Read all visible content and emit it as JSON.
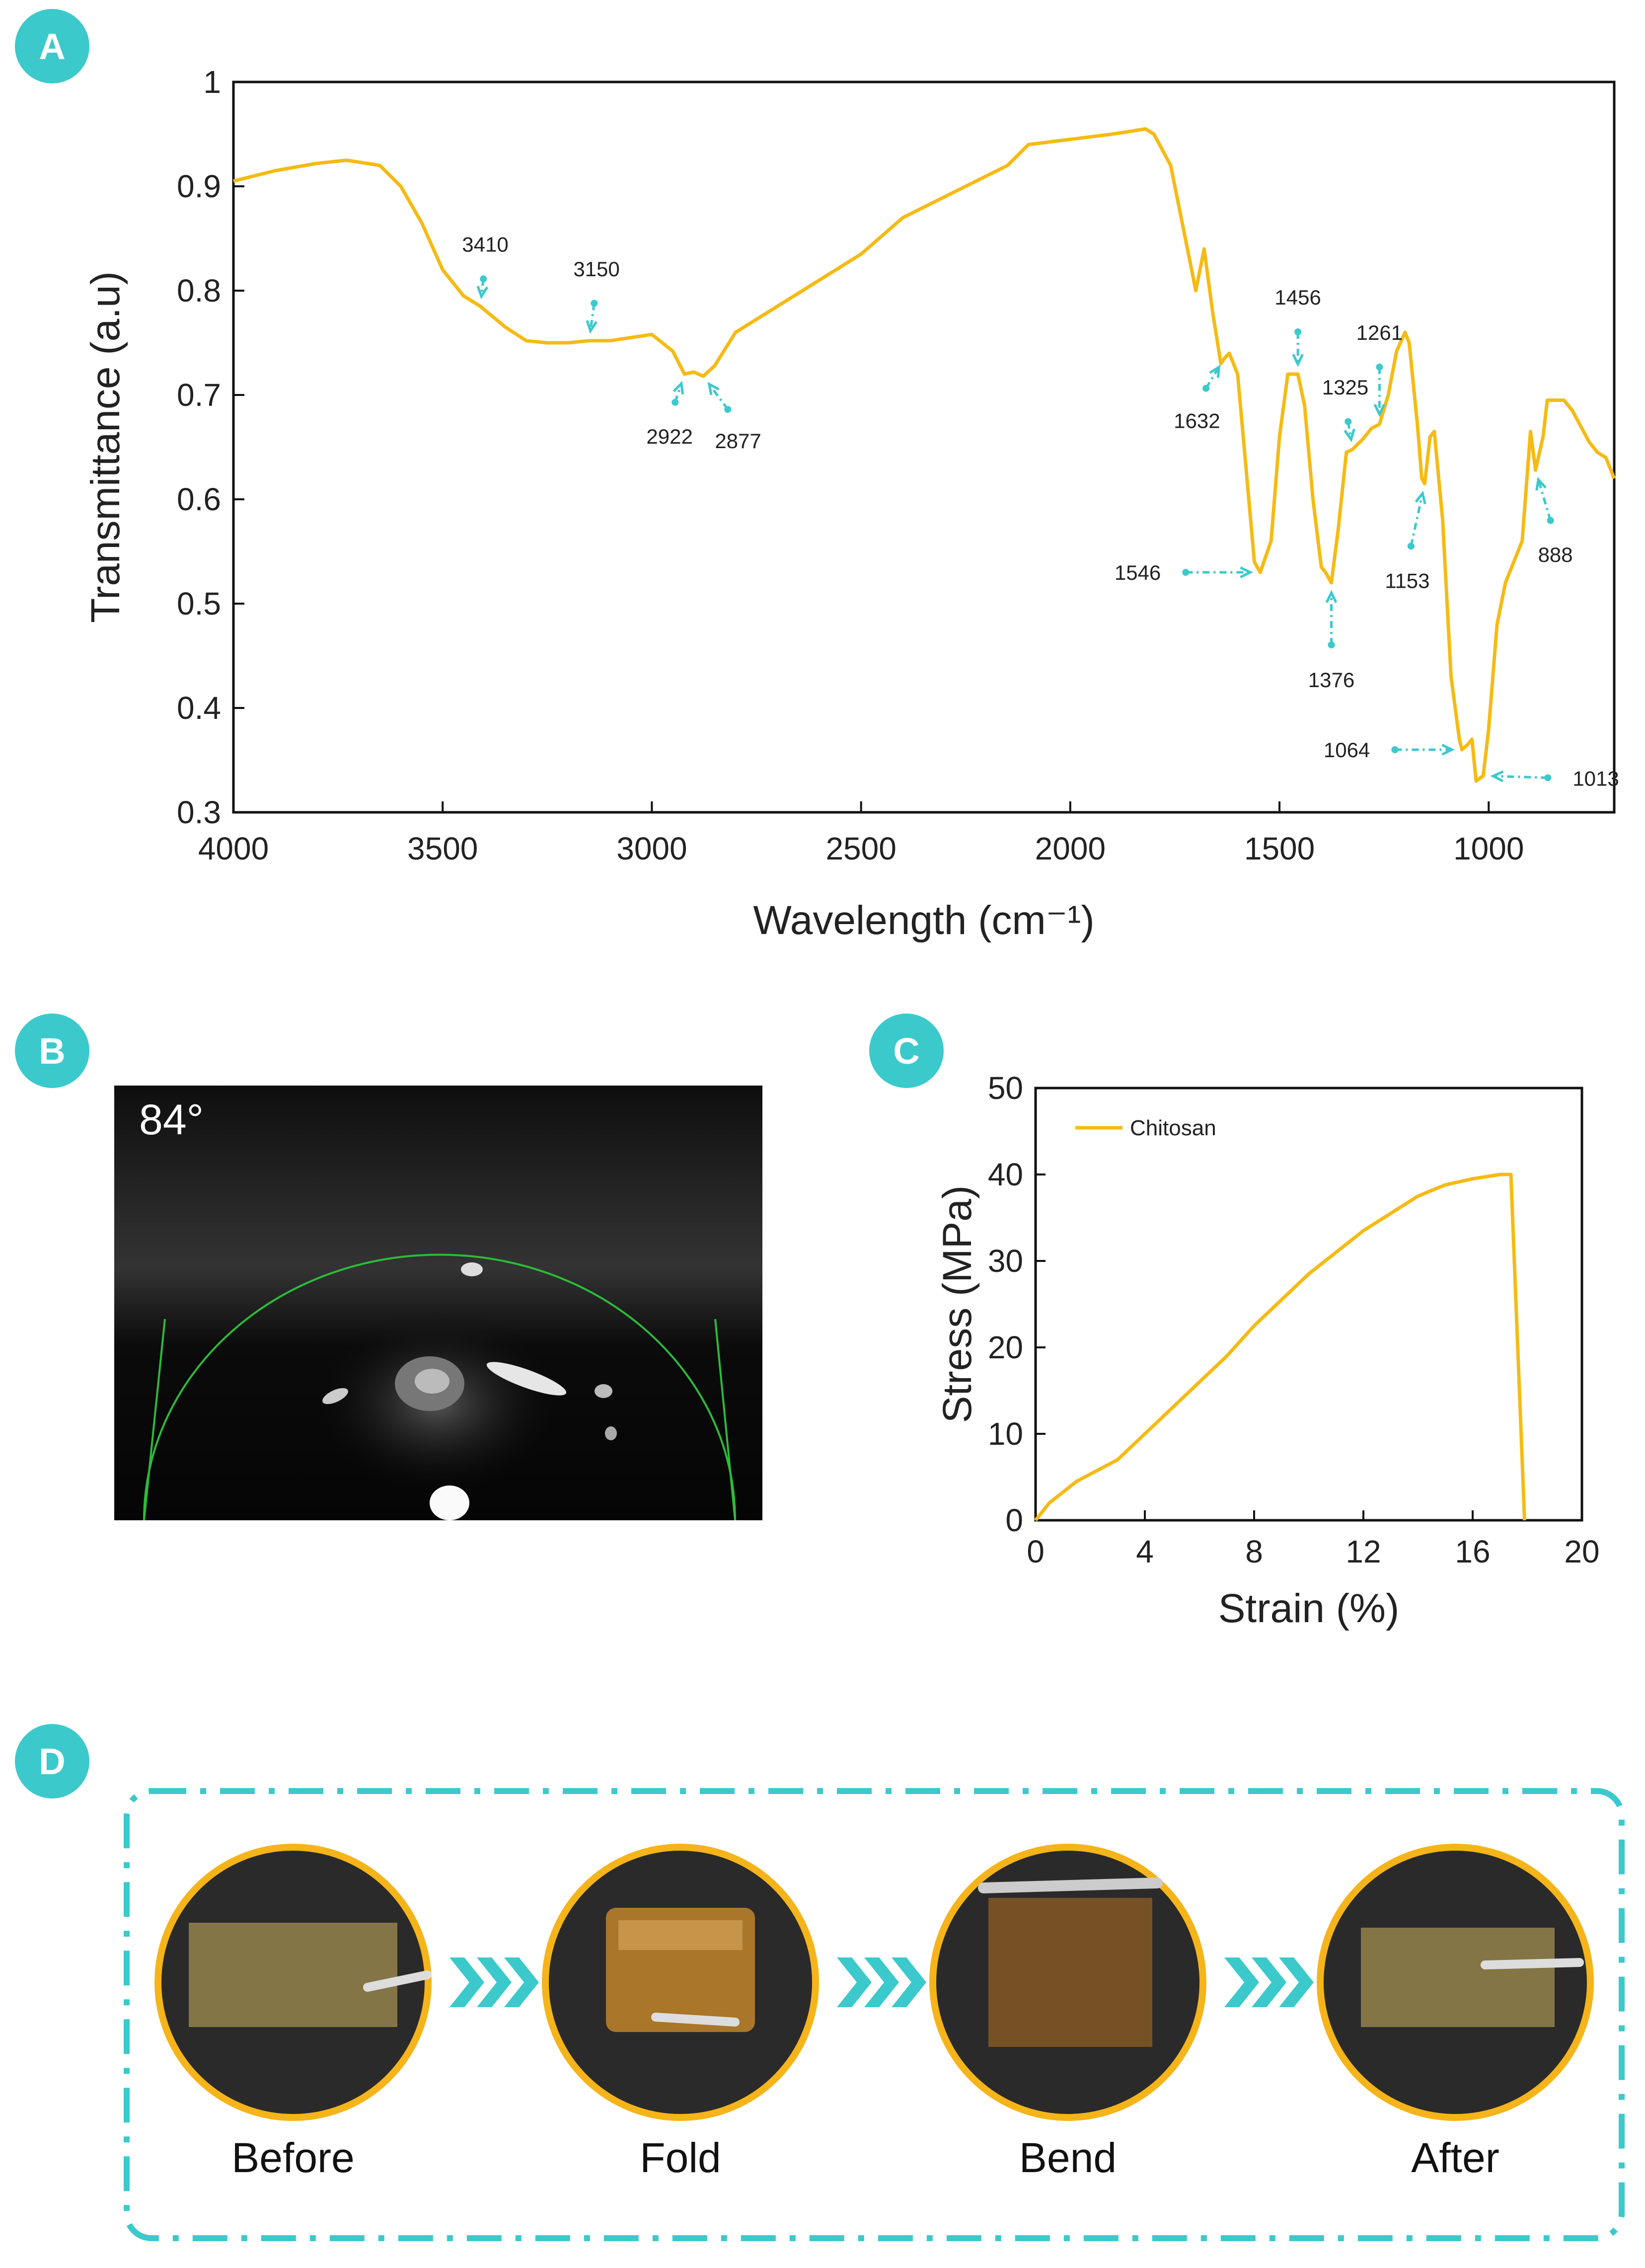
{
  "panels": {
    "A": {
      "label": "A"
    },
    "B": {
      "label": "B",
      "angle": "84°"
    },
    "C": {
      "label": "C"
    },
    "D": {
      "label": "D",
      "stages": [
        "Before",
        "Fold",
        "Bend",
        "After"
      ]
    }
  },
  "colors": {
    "series": "#f5bb14",
    "accent": "#3cc9cc"
  },
  "chart_data": [
    {
      "panel": "A",
      "type": "line",
      "xlabel": "Wavelength (cm⁻¹)",
      "ylabel": "Transmittance (a.u)",
      "xlim": [
        4000,
        700
      ],
      "ylim": [
        0.3,
        1.0
      ],
      "x_reversed": true,
      "grid": false,
      "xticks": [
        4000,
        3500,
        3000,
        2500,
        2000,
        1500,
        1000
      ],
      "yticks": [
        0.3,
        0.4,
        0.5,
        0.6,
        0.7,
        0.8,
        0.9,
        1.0
      ],
      "ytick_labels": [
        "0.3",
        "0.4",
        "0.5",
        "0.6",
        "0.7",
        "0.8",
        "0.9",
        "1"
      ],
      "x": [
        4000,
        3900,
        3800,
        3730,
        3650,
        3600,
        3550,
        3500,
        3450,
        3410,
        3350,
        3300,
        3250,
        3200,
        3150,
        3100,
        3050,
        3000,
        2950,
        2922,
        2900,
        2877,
        2850,
        2800,
        2700,
        2600,
        2500,
        2400,
        2300,
        2200,
        2150,
        2100,
        2000,
        1900,
        1820,
        1800,
        1760,
        1730,
        1700,
        1680,
        1660,
        1640,
        1632,
        1620,
        1600,
        1580,
        1560,
        1546,
        1520,
        1500,
        1480,
        1460,
        1456,
        1440,
        1420,
        1400,
        1390,
        1376,
        1360,
        1340,
        1325,
        1300,
        1280,
        1261,
        1240,
        1220,
        1200,
        1190,
        1170,
        1160,
        1153,
        1140,
        1130,
        1110,
        1090,
        1070,
        1064,
        1050,
        1040,
        1030,
        1013,
        1000,
        980,
        960,
        940,
        920,
        900,
        888,
        870,
        860,
        840,
        820,
        800,
        780,
        760,
        740,
        720,
        700
      ],
      "y": [
        0.905,
        0.915,
        0.922,
        0.925,
        0.92,
        0.9,
        0.865,
        0.82,
        0.795,
        0.785,
        0.765,
        0.752,
        0.75,
        0.75,
        0.752,
        0.752,
        0.755,
        0.758,
        0.742,
        0.72,
        0.722,
        0.718,
        0.728,
        0.76,
        0.785,
        0.81,
        0.835,
        0.87,
        0.89,
        0.91,
        0.92,
        0.94,
        0.945,
        0.95,
        0.955,
        0.95,
        0.92,
        0.86,
        0.8,
        0.84,
        0.78,
        0.73,
        0.735,
        0.74,
        0.72,
        0.63,
        0.54,
        0.53,
        0.56,
        0.66,
        0.72,
        0.72,
        0.72,
        0.69,
        0.6,
        0.535,
        0.53,
        0.52,
        0.57,
        0.645,
        0.648,
        0.658,
        0.668,
        0.672,
        0.7,
        0.742,
        0.76,
        0.75,
        0.67,
        0.62,
        0.615,
        0.66,
        0.665,
        0.58,
        0.43,
        0.37,
        0.36,
        0.365,
        0.37,
        0.33,
        0.335,
        0.38,
        0.48,
        0.52,
        0.54,
        0.56,
        0.665,
        0.628,
        0.66,
        0.695,
        0.695,
        0.695,
        0.685,
        0.67,
        0.655,
        0.645,
        0.64,
        0.62
      ],
      "annotations": [
        {
          "text": "3410",
          "x": 3410,
          "y": 0.785
        },
        {
          "text": "3150",
          "x": 3150,
          "y": 0.752
        },
        {
          "text": "2922",
          "x": 2922,
          "y": 0.72
        },
        {
          "text": "2877",
          "x": 2877,
          "y": 0.718
        },
        {
          "text": "1632",
          "x": 1632,
          "y": 0.735
        },
        {
          "text": "1546",
          "x": 1546,
          "y": 0.53
        },
        {
          "text": "1456",
          "x": 1456,
          "y": 0.72
        },
        {
          "text": "1376",
          "x": 1376,
          "y": 0.52
        },
        {
          "text": "1325",
          "x": 1325,
          "y": 0.648
        },
        {
          "text": "1261",
          "x": 1261,
          "y": 0.672
        },
        {
          "text": "1153",
          "x": 1153,
          "y": 0.615
        },
        {
          "text": "1064",
          "x": 1064,
          "y": 0.36
        },
        {
          "text": "1013",
          "x": 1013,
          "y": 0.335
        },
        {
          "text": "888",
          "x": 888,
          "y": 0.628
        }
      ]
    },
    {
      "panel": "C",
      "type": "line",
      "xlabel": "Strain (%)",
      "ylabel": "Stress (MPa)",
      "xlim": [
        0,
        20
      ],
      "ylim": [
        0,
        50
      ],
      "grid": false,
      "legend": "top-left",
      "xticks": [
        0,
        4,
        8,
        12,
        16,
        20
      ],
      "yticks": [
        0,
        10,
        20,
        30,
        40,
        50
      ],
      "series": [
        {
          "name": "Chitosan",
          "x": [
            0,
            0.5,
            1.5,
            3,
            4,
            5,
            6,
            7,
            8,
            9,
            10,
            11,
            12,
            13,
            14,
            15,
            16,
            17,
            17.4,
            17.9
          ],
          "y": [
            0,
            2,
            4.5,
            7,
            10,
            13,
            16,
            19,
            22.5,
            25.5,
            28.5,
            31,
            33.5,
            35.5,
            37.5,
            38.8,
            39.5,
            40,
            40,
            0
          ]
        }
      ]
    }
  ]
}
